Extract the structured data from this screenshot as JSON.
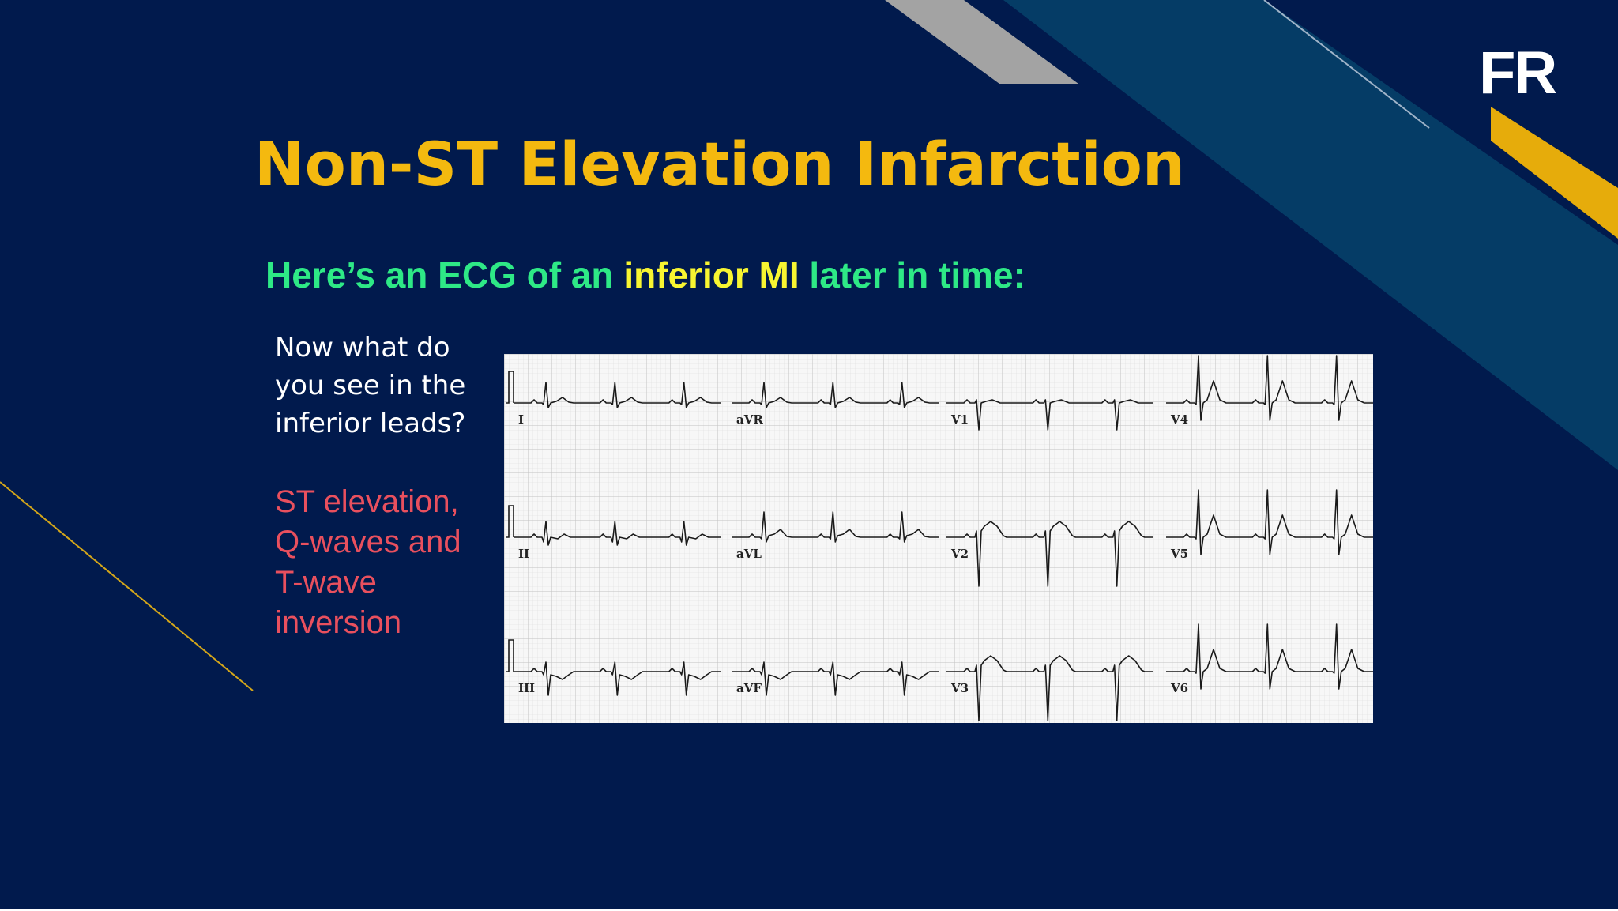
{
  "slide": {
    "title": "Non-ST Elevation Infarction",
    "subtitle_part1": "Here’s an ECG of an ",
    "subtitle_highlight": "inferior MI",
    "subtitle_part2": " later in time:",
    "question": "Now what do you see in the inferior leads?",
    "answer": "ST elevation, Q-waves and T-wave inversion",
    "logo": "FR"
  },
  "ecg": {
    "leads": [
      {
        "label": "I",
        "row": 0,
        "col": 0,
        "shape": "small"
      },
      {
        "label": "aVR",
        "row": 0,
        "col": 1,
        "shape": "small"
      },
      {
        "label": "V1",
        "row": 0,
        "col": 2,
        "shape": "deepS"
      },
      {
        "label": "V4",
        "row": 0,
        "col": 3,
        "shape": "tall"
      },
      {
        "label": "II",
        "row": 1,
        "col": 0,
        "shape": "smallQ"
      },
      {
        "label": "aVL",
        "row": 1,
        "col": 1,
        "shape": "mid"
      },
      {
        "label": "V2",
        "row": 1,
        "col": 2,
        "shape": "deepSste"
      },
      {
        "label": "V5",
        "row": 1,
        "col": 3,
        "shape": "tall"
      },
      {
        "label": "III",
        "row": 2,
        "col": 0,
        "shape": "deepQ"
      },
      {
        "label": "aVF",
        "row": 2,
        "col": 1,
        "shape": "deepQ"
      },
      {
        "label": "V3",
        "row": 2,
        "col": 2,
        "shape": "deepSste"
      },
      {
        "label": "V6",
        "row": 2,
        "col": 3,
        "shape": "tall"
      }
    ]
  },
  "colors": {
    "background": "#011a4d",
    "title": "#f4b90f",
    "subtitle": "#2ee986",
    "highlight": "#f8f531",
    "answer": "#e9505e",
    "stripe_teal": "#053c66",
    "stripe_grey": "#a3a3a3",
    "stripe_gold": "#e6ac0b"
  }
}
